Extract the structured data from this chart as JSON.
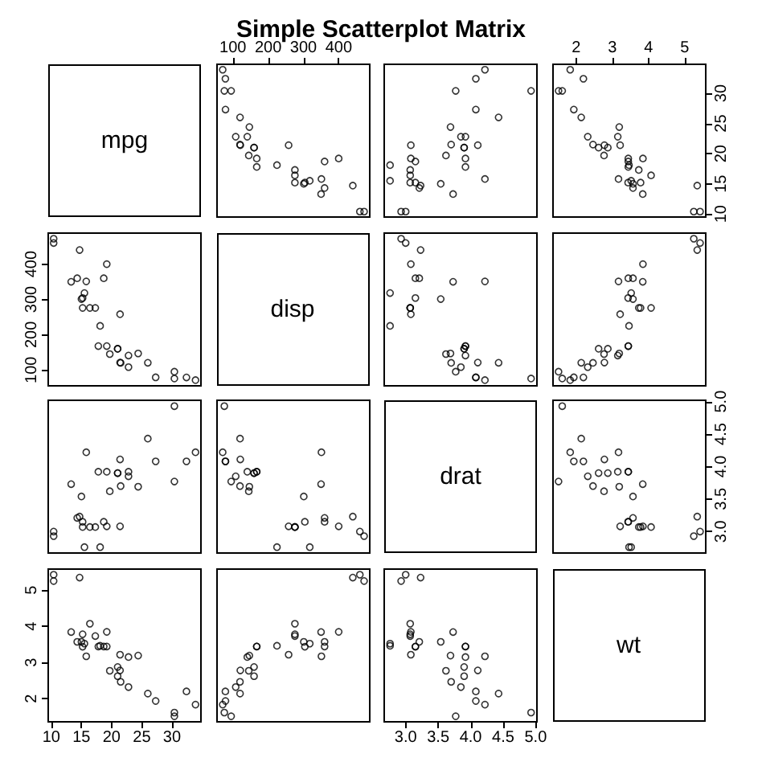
{
  "chart_data": [
    {
      "type": "other",
      "title": "Simple Scatterplot Matrix",
      "annotations": [
        "mpg"
      ]
    },
    {
      "type": "scatter",
      "marker": "circle",
      "tick_labels": "x",
      "xlim": [
        55,
        488
      ],
      "ylim": [
        9.5,
        34.8
      ],
      "xticks": [
        100,
        200,
        300,
        400
      ],
      "x": [
        160,
        160,
        108,
        258,
        360,
        225,
        360,
        146.7,
        140.8,
        167.6,
        167.6,
        275.8,
        275.8,
        275.8,
        472,
        460,
        440,
        78.7,
        75.7,
        71.1,
        120.1,
        318,
        304,
        350,
        400,
        79,
        120.3,
        95.1,
        351,
        145,
        301,
        121
      ],
      "series": [
        {
          "color": "#000000",
          "values": [
            21,
            21,
            22.8,
            21.4,
            18.7,
            18.1,
            14.3,
            24.4,
            22.8,
            19.2,
            17.8,
            16.4,
            17.3,
            15.2,
            10.4,
            10.4,
            14.7,
            32.4,
            30.4,
            33.9,
            21.5,
            15.5,
            15.2,
            13.3,
            19.2,
            27.3,
            26,
            30.4,
            15.8,
            19.7,
            15,
            21.4
          ]
        }
      ]
    },
    {
      "type": "scatter",
      "marker": "circle",
      "tick_labels": false,
      "xlim": [
        2.67,
        5.02
      ],
      "ylim": [
        9.5,
        34.8
      ],
      "x": [
        3.9,
        3.9,
        3.85,
        3.08,
        3.15,
        2.76,
        3.21,
        3.69,
        3.92,
        3.92,
        3.92,
        3.07,
        3.07,
        3.07,
        2.93,
        3,
        3.23,
        4.08,
        4.93,
        4.22,
        3.7,
        2.76,
        3.15,
        3.73,
        3.08,
        4.08,
        4.43,
        3.77,
        4.22,
        3.62,
        3.54,
        4.11
      ],
      "series": [
        {
          "color": "#000000",
          "values": [
            21,
            21,
            22.8,
            21.4,
            18.7,
            18.1,
            14.3,
            24.4,
            22.8,
            19.2,
            17.8,
            16.4,
            17.3,
            15.2,
            10.4,
            10.4,
            14.7,
            32.4,
            30.4,
            33.9,
            21.5,
            15.5,
            15.2,
            13.3,
            19.2,
            27.3,
            26,
            30.4,
            15.8,
            19.7,
            15,
            21.4
          ]
        }
      ]
    },
    {
      "type": "scatter",
      "marker": "circle",
      "xlim": [
        1.36,
        5.58
      ],
      "ylim": [
        9.5,
        34.8
      ],
      "xticks": [
        2,
        3,
        4,
        5
      ],
      "yticks": [
        10,
        15,
        20,
        25,
        30
      ],
      "x": [
        2.62,
        2.875,
        2.32,
        3.215,
        3.44,
        3.46,
        3.57,
        3.19,
        3.15,
        3.44,
        3.44,
        4.07,
        3.73,
        3.78,
        5.25,
        5.424,
        5.345,
        2.2,
        1.615,
        1.835,
        2.465,
        3.52,
        3.435,
        3.84,
        3.845,
        1.935,
        2.14,
        1.513,
        3.17,
        2.77,
        3.57,
        2.78
      ],
      "series": [
        {
          "color": "#000000",
          "values": [
            21,
            21,
            22.8,
            21.4,
            18.7,
            18.1,
            14.3,
            24.4,
            22.8,
            19.2,
            17.8,
            16.4,
            17.3,
            15.2,
            10.4,
            10.4,
            14.7,
            32.4,
            30.4,
            33.9,
            21.5,
            15.5,
            15.2,
            13.3,
            19.2,
            27.3,
            26,
            30.4,
            15.8,
            19.7,
            15,
            21.4
          ]
        }
      ]
    },
    {
      "type": "scatter",
      "marker": "circle",
      "tick_labels": "y",
      "xlim": [
        9.5,
        34.8
      ],
      "ylim": [
        55,
        488
      ],
      "yticks": [
        100,
        200,
        300,
        400
      ],
      "x": [
        21,
        21,
        22.8,
        21.4,
        18.7,
        18.1,
        14.3,
        24.4,
        22.8,
        19.2,
        17.8,
        16.4,
        17.3,
        15.2,
        10.4,
        10.4,
        14.7,
        32.4,
        30.4,
        33.9,
        21.5,
        15.5,
        15.2,
        13.3,
        19.2,
        27.3,
        26,
        30.4,
        15.8,
        19.7,
        15,
        21.4
      ],
      "series": [
        {
          "color": "#000000",
          "values": [
            160,
            160,
            108,
            258,
            360,
            225,
            360,
            146.7,
            140.8,
            167.6,
            167.6,
            275.8,
            275.8,
            275.8,
            472,
            460,
            440,
            78.7,
            75.7,
            71.1,
            120.1,
            318,
            304,
            350,
            400,
            79,
            120.3,
            95.1,
            351,
            145,
            301,
            121
          ]
        }
      ]
    },
    {
      "type": "other",
      "annotations": [
        "disp"
      ]
    },
    {
      "type": "scatter",
      "marker": "circle",
      "tick_labels": false,
      "xlim": [
        2.67,
        5.02
      ],
      "ylim": [
        55,
        488
      ],
      "x": [
        3.9,
        3.9,
        3.85,
        3.08,
        3.15,
        2.76,
        3.21,
        3.69,
        3.92,
        3.92,
        3.92,
        3.07,
        3.07,
        3.07,
        2.93,
        3,
        3.23,
        4.08,
        4.93,
        4.22,
        3.7,
        2.76,
        3.15,
        3.73,
        3.08,
        4.08,
        4.43,
        3.77,
        4.22,
        3.62,
        3.54,
        4.11
      ],
      "series": [
        {
          "color": "#000000",
          "values": [
            160,
            160,
            108,
            258,
            360,
            225,
            360,
            146.7,
            140.8,
            167.6,
            167.6,
            275.8,
            275.8,
            275.8,
            472,
            460,
            440,
            78.7,
            75.7,
            71.1,
            120.1,
            318,
            304,
            350,
            400,
            79,
            120.3,
            95.1,
            351,
            145,
            301,
            121
          ]
        }
      ]
    },
    {
      "type": "scatter",
      "marker": "circle",
      "tick_labels": false,
      "xlim": [
        1.36,
        5.58
      ],
      "ylim": [
        55,
        488
      ],
      "x": [
        2.62,
        2.875,
        2.32,
        3.215,
        3.44,
        3.46,
        3.57,
        3.19,
        3.15,
        3.44,
        3.44,
        4.07,
        3.73,
        3.78,
        5.25,
        5.424,
        5.345,
        2.2,
        1.615,
        1.835,
        2.465,
        3.52,
        3.435,
        3.84,
        3.845,
        1.935,
        2.14,
        1.513,
        3.17,
        2.77,
        3.57,
        2.78
      ],
      "series": [
        {
          "color": "#000000",
          "values": [
            160,
            160,
            108,
            258,
            360,
            225,
            360,
            146.7,
            140.8,
            167.6,
            167.6,
            275.8,
            275.8,
            275.8,
            472,
            460,
            440,
            78.7,
            75.7,
            71.1,
            120.1,
            318,
            304,
            350,
            400,
            79,
            120.3,
            95.1,
            351,
            145,
            301,
            121
          ]
        }
      ]
    },
    {
      "type": "scatter",
      "marker": "circle",
      "tick_labels": false,
      "xlim": [
        9.5,
        34.8
      ],
      "ylim": [
        2.67,
        5.02
      ],
      "x": [
        21,
        21,
        22.8,
        21.4,
        18.7,
        18.1,
        14.3,
        24.4,
        22.8,
        19.2,
        17.8,
        16.4,
        17.3,
        15.2,
        10.4,
        10.4,
        14.7,
        32.4,
        30.4,
        33.9,
        21.5,
        15.5,
        15.2,
        13.3,
        19.2,
        27.3,
        26,
        30.4,
        15.8,
        19.7,
        15,
        21.4
      ],
      "series": [
        {
          "color": "#000000",
          "values": [
            3.9,
            3.9,
            3.85,
            3.08,
            3.15,
            2.76,
            3.21,
            3.69,
            3.92,
            3.92,
            3.92,
            3.07,
            3.07,
            3.07,
            2.93,
            3,
            3.23,
            4.08,
            4.93,
            4.22,
            3.7,
            2.76,
            3.15,
            3.73,
            3.08,
            4.08,
            4.43,
            3.77,
            4.22,
            3.62,
            3.54,
            4.11
          ]
        }
      ]
    },
    {
      "type": "scatter",
      "marker": "circle",
      "tick_labels": false,
      "xlim": [
        55,
        488
      ],
      "ylim": [
        2.67,
        5.02
      ],
      "x": [
        160,
        160,
        108,
        258,
        360,
        225,
        360,
        146.7,
        140.8,
        167.6,
        167.6,
        275.8,
        275.8,
        275.8,
        472,
        460,
        440,
        78.7,
        75.7,
        71.1,
        120.1,
        318,
        304,
        350,
        400,
        79,
        120.3,
        95.1,
        351,
        145,
        301,
        121
      ],
      "series": [
        {
          "color": "#000000",
          "values": [
            3.9,
            3.9,
            3.85,
            3.08,
            3.15,
            2.76,
            3.21,
            3.69,
            3.92,
            3.92,
            3.92,
            3.07,
            3.07,
            3.07,
            2.93,
            3,
            3.23,
            4.08,
            4.93,
            4.22,
            3.7,
            2.76,
            3.15,
            3.73,
            3.08,
            4.08,
            4.43,
            3.77,
            4.22,
            3.62,
            3.54,
            4.11
          ]
        }
      ]
    },
    {
      "type": "other",
      "annotations": [
        "drat"
      ]
    },
    {
      "type": "scatter",
      "marker": "circle",
      "tick_labels": "y",
      "xlim": [
        1.36,
        5.58
      ],
      "ylim": [
        2.67,
        5.02
      ],
      "yticks": [
        {
          "value": 3,
          "label": "3.0"
        },
        {
          "value": 3.5,
          "label": "3.5"
        },
        {
          "value": 4,
          "label": "4.0"
        },
        {
          "value": 4.5,
          "label": "4.5"
        },
        {
          "value": 5,
          "label": "5.0"
        }
      ],
      "x": [
        2.62,
        2.875,
        2.32,
        3.215,
        3.44,
        3.46,
        3.57,
        3.19,
        3.15,
        3.44,
        3.44,
        4.07,
        3.73,
        3.78,
        5.25,
        5.424,
        5.345,
        2.2,
        1.615,
        1.835,
        2.465,
        3.52,
        3.435,
        3.84,
        3.845,
        1.935,
        2.14,
        1.513,
        3.17,
        2.77,
        3.57,
        2.78
      ],
      "series": [
        {
          "color": "#000000",
          "values": [
            3.9,
            3.9,
            3.85,
            3.08,
            3.15,
            2.76,
            3.21,
            3.69,
            3.92,
            3.92,
            3.92,
            3.07,
            3.07,
            3.07,
            2.93,
            3,
            3.23,
            4.08,
            4.93,
            4.22,
            3.7,
            2.76,
            3.15,
            3.73,
            3.08,
            4.08,
            4.43,
            3.77,
            4.22,
            3.62,
            3.54,
            4.11
          ]
        }
      ]
    },
    {
      "type": "scatter",
      "marker": "circle",
      "xlim": [
        9.5,
        34.8
      ],
      "ylim": [
        1.36,
        5.58
      ],
      "xticks": [
        10,
        15,
        20,
        25,
        30
      ],
      "yticks": [
        2,
        3,
        4,
        5
      ],
      "x": [
        21,
        21,
        22.8,
        21.4,
        18.7,
        18.1,
        14.3,
        24.4,
        22.8,
        19.2,
        17.8,
        16.4,
        17.3,
        15.2,
        10.4,
        10.4,
        14.7,
        32.4,
        30.4,
        33.9,
        21.5,
        15.5,
        15.2,
        13.3,
        19.2,
        27.3,
        26,
        30.4,
        15.8,
        19.7,
        15,
        21.4
      ],
      "series": [
        {
          "color": "#000000",
          "values": [
            2.62,
            2.875,
            2.32,
            3.215,
            3.44,
            3.46,
            3.57,
            3.19,
            3.15,
            3.44,
            3.44,
            4.07,
            3.73,
            3.78,
            5.25,
            5.424,
            5.345,
            2.2,
            1.615,
            1.835,
            2.465,
            3.52,
            3.435,
            3.84,
            3.845,
            1.935,
            2.14,
            1.513,
            3.17,
            2.77,
            3.57,
            2.78
          ]
        }
      ]
    },
    {
      "type": "scatter",
      "marker": "circle",
      "tick_labels": false,
      "xlim": [
        55,
        488
      ],
      "ylim": [
        1.36,
        5.58
      ],
      "x": [
        160,
        160,
        108,
        258,
        360,
        225,
        360,
        146.7,
        140.8,
        167.6,
        167.6,
        275.8,
        275.8,
        275.8,
        472,
        460,
        440,
        78.7,
        75.7,
        71.1,
        120.1,
        318,
        304,
        350,
        400,
        79,
        120.3,
        95.1,
        351,
        145,
        301,
        121
      ],
      "series": [
        {
          "color": "#000000",
          "values": [
            2.62,
            2.875,
            2.32,
            3.215,
            3.44,
            3.46,
            3.57,
            3.19,
            3.15,
            3.44,
            3.44,
            4.07,
            3.73,
            3.78,
            5.25,
            5.424,
            5.345,
            2.2,
            1.615,
            1.835,
            2.465,
            3.52,
            3.435,
            3.84,
            3.845,
            1.935,
            2.14,
            1.513,
            3.17,
            2.77,
            3.57,
            2.78
          ]
        }
      ]
    },
    {
      "type": "scatter",
      "marker": "circle",
      "tick_labels": "x",
      "xlim": [
        2.67,
        5.02
      ],
      "ylim": [
        1.36,
        5.58
      ],
      "xticks": [
        {
          "value": 3,
          "label": "3.0"
        },
        {
          "value": 3.5,
          "label": "3.5"
        },
        {
          "value": 4,
          "label": "4.0"
        },
        {
          "value": 4.5,
          "label": "4.5"
        },
        {
          "value": 5,
          "label": "5.0"
        }
      ],
      "x": [
        3.9,
        3.9,
        3.85,
        3.08,
        3.15,
        2.76,
        3.21,
        3.69,
        3.92,
        3.92,
        3.92,
        3.07,
        3.07,
        3.07,
        2.93,
        3,
        3.23,
        4.08,
        4.93,
        4.22,
        3.7,
        2.76,
        3.15,
        3.73,
        3.08,
        4.08,
        4.43,
        3.77,
        4.22,
        3.62,
        3.54,
        4.11
      ],
      "series": [
        {
          "color": "#000000",
          "values": [
            2.62,
            2.875,
            2.32,
            3.215,
            3.44,
            3.46,
            3.57,
            3.19,
            3.15,
            3.44,
            3.44,
            4.07,
            3.73,
            3.78,
            5.25,
            5.424,
            5.345,
            2.2,
            1.615,
            1.835,
            2.465,
            3.52,
            3.435,
            3.84,
            3.845,
            1.935,
            2.14,
            1.513,
            3.17,
            2.77,
            3.57,
            2.78
          ]
        }
      ]
    },
    {
      "type": "other",
      "annotations": [
        "wt"
      ]
    }
  ]
}
